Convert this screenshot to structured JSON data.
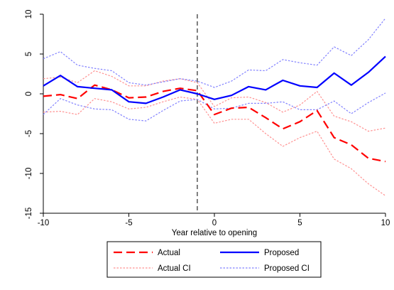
{
  "chart_data": {
    "type": "line",
    "xlabel": "Year relative to opening",
    "ylabel": "",
    "xlim": [
      -10,
      10
    ],
    "ylim": [
      -15,
      10
    ],
    "xticks": [
      -10,
      -5,
      0,
      5,
      10
    ],
    "yticks": [
      -15,
      -10,
      -5,
      0,
      5,
      10
    ],
    "grid": false,
    "legend_position": "bottom",
    "vertical_reference_line": {
      "x": -1,
      "style": "dashed",
      "color": "#555555"
    },
    "x": [
      -10,
      -9,
      -8,
      -7,
      -6,
      -5,
      -4,
      -3,
      -2,
      -1,
      0,
      1,
      2,
      3,
      4,
      5,
      6,
      7,
      8,
      9,
      10
    ],
    "series": [
      {
        "name": "Actual",
        "color": "#ff0000",
        "style": "long-dash",
        "width": 2.2,
        "values": [
          -0.3,
          -0.1,
          -0.6,
          1.1,
          0.5,
          -0.5,
          -0.4,
          0.3,
          0.7,
          0.4,
          -2.6,
          -1.8,
          -1.7,
          -3.0,
          -4.4,
          -3.5,
          -2.1,
          -5.5,
          -6.4,
          -8.1,
          -8.5
        ]
      },
      {
        "name": "Proposed",
        "color": "#0000ff",
        "style": "solid",
        "width": 2.2,
        "values": [
          1.0,
          2.3,
          0.9,
          0.7,
          0.5,
          -1.0,
          -1.2,
          -0.4,
          0.5,
          0.0,
          -0.7,
          -0.2,
          0.9,
          0.5,
          1.7,
          1.0,
          0.8,
          2.6,
          1.1,
          2.7,
          4.7
        ]
      },
      {
        "name": "Actual CI",
        "color": "#ff9090",
        "style": "dotted",
        "width": 1.2,
        "values": [
          -2.3,
          -2.2,
          -2.6,
          -0.6,
          -1.0,
          -1.9,
          -1.7,
          -1.0,
          -0.4,
          -0.7,
          -3.7,
          -3.2,
          -3.2,
          -5.0,
          -6.6,
          -5.5,
          -4.7,
          -8.2,
          -9.4,
          -11.3,
          -12.8
        ]
      },
      {
        "name": "Actual CI upper",
        "color": "#ff9090",
        "style": "dotted",
        "width": 1.2,
        "values": [
          1.9,
          2.1,
          1.4,
          2.9,
          2.2,
          1.0,
          1.0,
          1.6,
          1.9,
          1.4,
          -1.6,
          -0.5,
          -0.4,
          -1.1,
          -2.3,
          -1.4,
          0.3,
          -2.8,
          -3.5,
          -4.7,
          -4.3
        ]
      },
      {
        "name": "Proposed CI",
        "color": "#8080ff",
        "style": "dotted",
        "width": 1.2,
        "values": [
          -2.6,
          -0.6,
          -1.4,
          -1.9,
          -2.0,
          -3.2,
          -3.4,
          -2.1,
          -0.9,
          -0.7,
          -1.9,
          -1.8,
          -1.2,
          -1.2,
          -1.0,
          -2.0,
          -2.0,
          -0.9,
          -2.5,
          -1.1,
          0.1
        ]
      },
      {
        "name": "Proposed CI upper",
        "color": "#8080ff",
        "style": "dotted",
        "width": 1.2,
        "values": [
          4.4,
          5.3,
          3.6,
          3.2,
          2.9,
          1.4,
          1.1,
          1.5,
          1.9,
          1.6,
          0.8,
          1.6,
          3.0,
          2.9,
          4.3,
          3.9,
          3.6,
          5.9,
          4.8,
          6.8,
          9.5
        ]
      }
    ],
    "legend": [
      {
        "label": "Actual",
        "series": "Actual"
      },
      {
        "label": "Proposed",
        "series": "Proposed"
      },
      {
        "label": "Actual CI",
        "series": "Actual CI"
      },
      {
        "label": "Proposed CI",
        "series": "Proposed CI"
      }
    ]
  }
}
